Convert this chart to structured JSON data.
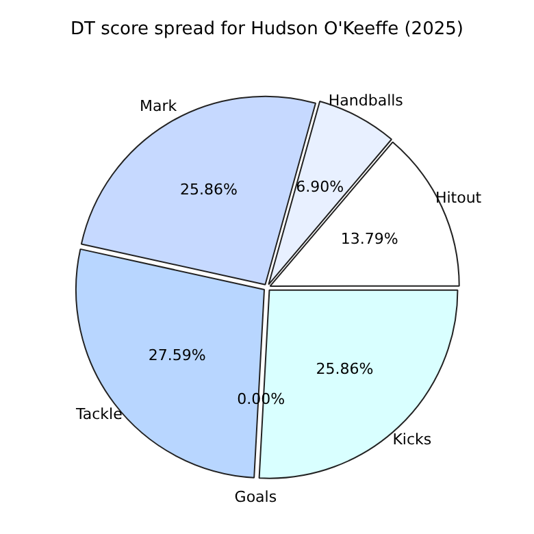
{
  "chart_data": {
    "type": "pie",
    "title": "DT score spread for Hudson O'Keeffe (2025)",
    "categories": [
      "Hitout",
      "Handballs",
      "Mark",
      "Tackle",
      "Goals",
      "Kicks"
    ],
    "values": [
      13.79,
      6.9,
      25.86,
      27.59,
      0.0,
      25.86
    ],
    "value_labels": [
      "13.79%",
      "6.90%",
      "25.86%",
      "27.59%",
      "0.00%",
      "25.86%"
    ],
    "colors": [
      "#ffffff",
      "#e8f0ff",
      "#c6d9ff",
      "#b8d6ff",
      "#cce0ff",
      "#d9ffff"
    ],
    "legend": false
  }
}
